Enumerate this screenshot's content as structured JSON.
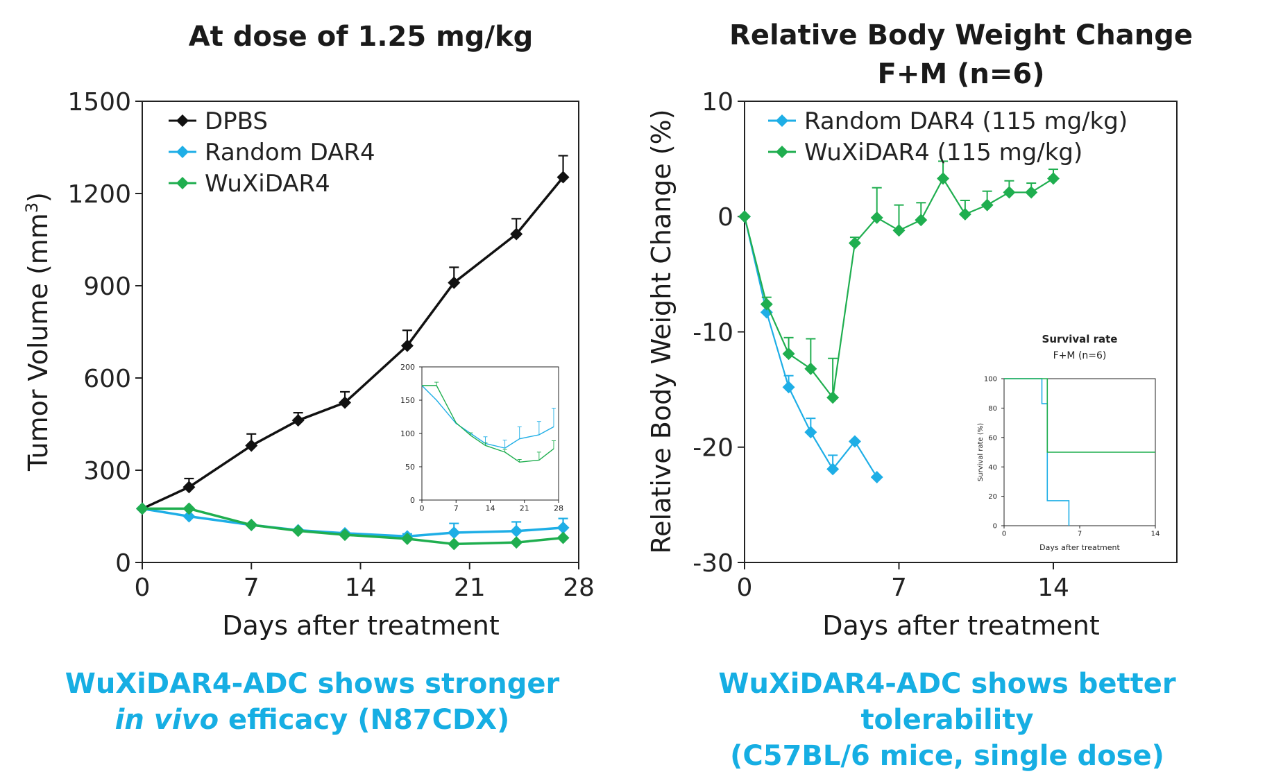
{
  "colors": {
    "dpbs": "#111111",
    "random": "#1eaee6",
    "wuxi": "#1fae4f",
    "caption": "#16aee3"
  },
  "captions": {
    "left_line1": "WuXiDAR4-ADC shows stronger",
    "left_line2_italic": "in vivo",
    "left_line2_rest": " efficacy (N87CDX)",
    "right_line1": "WuXiDAR4-ADC shows better tolerability",
    "right_line2": "(C57BL/6 mice, single dose)"
  },
  "chart_data": [
    {
      "type": "line",
      "title": "At dose of 1.25 mg/kg",
      "xlabel": "Days after treatment",
      "ylabel": "Tumor Volume (mm3)",
      "xlim": [
        0,
        28
      ],
      "ylim": [
        0,
        1500
      ],
      "xticks": [
        0,
        7,
        14,
        21,
        28
      ],
      "yticks": [
        0,
        300,
        600,
        900,
        1200,
        1500
      ],
      "legend": "top-left",
      "series": [
        {
          "name": "DPBS",
          "color": "#111111",
          "x": [
            0,
            3,
            7,
            10,
            13,
            17,
            20,
            24,
            27
          ],
          "y": [
            175,
            245,
            380,
            462,
            520,
            705,
            910,
            1068,
            1253
          ],
          "err": [
            0,
            28,
            38,
            25,
            35,
            50,
            50,
            50,
            70
          ]
        },
        {
          "name": "Random DAR4",
          "color": "#1eaee6",
          "x": [
            0,
            3,
            7,
            10,
            13,
            17,
            20,
            24,
            27
          ],
          "y": [
            175,
            150,
            122,
            105,
            95,
            85,
            97,
            102,
            113
          ],
          "err": [
            0,
            0,
            0,
            0,
            0,
            8,
            30,
            30,
            30
          ]
        },
        {
          "name": "WuXiDAR4",
          "color": "#1fae4f",
          "x": [
            0,
            3,
            7,
            10,
            13,
            17,
            20,
            24,
            27
          ],
          "y": [
            175,
            175,
            122,
            103,
            90,
            77,
            60,
            65,
            80
          ],
          "err": [
            0,
            0,
            0,
            0,
            0,
            0,
            0,
            0,
            0
          ]
        }
      ],
      "inset": {
        "xlim": [
          0,
          28
        ],
        "ylim": [
          0,
          200
        ],
        "xticks": [
          0,
          7,
          14,
          21,
          28
        ],
        "yticks": [
          0,
          50,
          100,
          150,
          200
        ],
        "series": [
          {
            "name": "Random DAR4",
            "color": "#1eaee6",
            "x": [
              0,
              3,
              7,
              10,
              13,
              17,
              20,
              24,
              27
            ],
            "y": [
              172,
              150,
              115,
              100,
              85,
              78,
              92,
              98,
              110
            ],
            "err": [
              0,
              0,
              0,
              0,
              10,
              12,
              18,
              20,
              28
            ]
          },
          {
            "name": "WuXiDAR4",
            "color": "#1fae4f",
            "x": [
              0,
              3,
              7,
              10,
              13,
              17,
              20,
              24,
              27
            ],
            "y": [
              172,
              172,
              116,
              97,
              82,
              72,
              57,
              60,
              77
            ],
            "err": [
              0,
              5,
              0,
              4,
              4,
              4,
              4,
              12,
              12
            ]
          }
        ]
      }
    },
    {
      "type": "line",
      "title": "Relative Body Weight Change",
      "subtitle": "F+M (n=6)",
      "xlabel": "Days after treatment",
      "ylabel": "Relative Body Weight Change (%)",
      "xlim": [
        0,
        19.6
      ],
      "ylim": [
        -30,
        10
      ],
      "xticks": [
        0,
        7,
        14
      ],
      "yticks": [
        -30,
        -20,
        -10,
        0,
        10
      ],
      "legend": "top-left",
      "series": [
        {
          "name": "Random DAR4 (115 mg/kg)",
          "color": "#1eaee6",
          "x": [
            0,
            1,
            2,
            3,
            4,
            5,
            6
          ],
          "y": [
            0,
            -8.3,
            -14.8,
            -18.7,
            -21.9,
            -19.5,
            -22.6
          ],
          "err": [
            0,
            0,
            1.0,
            1.2,
            1.2,
            0,
            0
          ]
        },
        {
          "name": "WuXiDAR4 (115 mg/kg)",
          "color": "#1fae4f",
          "x": [
            0,
            1,
            2,
            3,
            4,
            5,
            6,
            7,
            8,
            9,
            10,
            11,
            12,
            13,
            14
          ],
          "y": [
            0,
            -7.6,
            -11.9,
            -13.2,
            -15.7,
            -2.3,
            -0.1,
            -1.2,
            -0.3,
            3.3,
            0.2,
            1.0,
            2.1,
            2.1,
            3.3
          ],
          "err": [
            0,
            0.6,
            1.4,
            2.6,
            3.4,
            0.5,
            2.6,
            2.2,
            1.5,
            1.5,
            1.2,
            1.2,
            1.0,
            0.8,
            0.8
          ]
        }
      ],
      "inset": {
        "title": "Survival rate",
        "subtitle": "F+M (n=6)",
        "xlabel": "Days after treatment",
        "ylabel": "Survival rate (%)",
        "xlim": [
          0,
          14
        ],
        "ylim": [
          0,
          100
        ],
        "xticks": [
          0,
          7,
          14
        ],
        "yticks": [
          0,
          20,
          40,
          60,
          80,
          100
        ],
        "series": [
          {
            "name": "Random DAR4",
            "color": "#1eaee6",
            "type": "step",
            "x": [
              0,
              3.5,
              4,
              6,
              6
            ],
            "y": [
              100,
              83,
              17,
              17,
              0
            ]
          },
          {
            "name": "WuXiDAR4",
            "color": "#1fae4f",
            "type": "step",
            "x": [
              0,
              4,
              14
            ],
            "y": [
              100,
              50,
              50
            ]
          }
        ]
      }
    }
  ]
}
